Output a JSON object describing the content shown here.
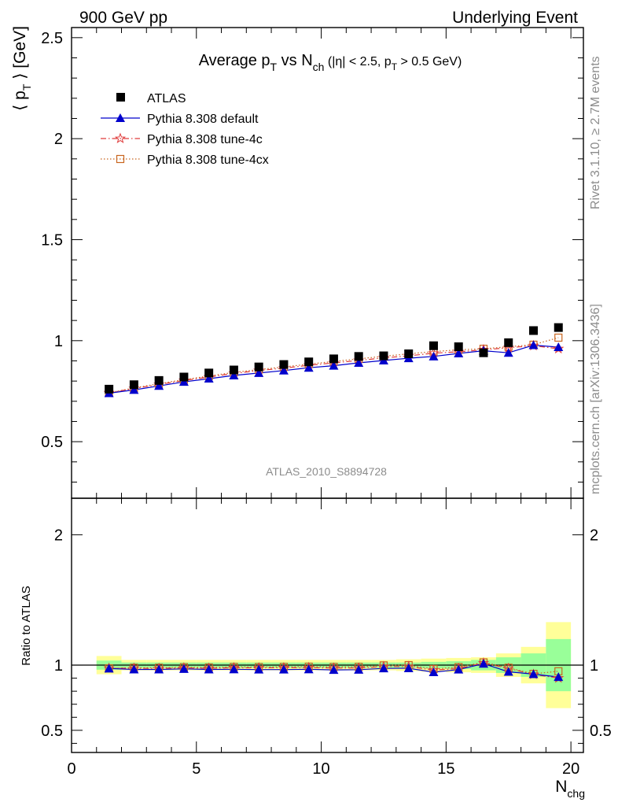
{
  "header": {
    "left": "900 GeV pp",
    "right": "Underlying Event"
  },
  "side": {
    "rivet": "Rivet 3.1.10, ≥ 2.7M events",
    "mcplots": "mcplots.cern.ch [arXiv:1306.3436]"
  },
  "colors": {
    "atlas": "#000000",
    "default": "#0000cc",
    "tune4c": "#e03c3c",
    "tune4cx": "#c8641e",
    "band_inner": "#99ff99",
    "band_outer": "#ffff99",
    "watermark": "#8c8c8c"
  },
  "chart_data": [
    {
      "type": "scatter",
      "title_parts": {
        "a": "Average p",
        "a_sub": "T",
        "b": " vs N",
        "b_sub": "ch",
        "c": " (|η| < 2.5, p",
        "c_sub": "T",
        "d": " > 0.5 GeV)"
      },
      "ylabel_parts": {
        "a": "⟨ p",
        "sub": "T",
        "b": " ⟩ [GeV]"
      },
      "watermark": "ATLAS_2010_S8894728",
      "xlim": [
        0,
        20.5
      ],
      "ylim": [
        0.22,
        2.55
      ],
      "yticks": [
        "0.5",
        "1",
        "1.5",
        "2",
        "2.5"
      ],
      "ytick_values": [
        0.5,
        1,
        1.5,
        2,
        2.5
      ],
      "x": [
        1.5,
        2.5,
        3.5,
        4.5,
        5.5,
        6.5,
        7.5,
        8.5,
        9.5,
        10.5,
        11.5,
        12.5,
        13.5,
        14.5,
        15.5,
        16.5,
        17.5,
        18.5,
        19.5
      ],
      "series": [
        {
          "name": "ATLAS",
          "style": "data",
          "values": [
            0.76,
            0.782,
            0.803,
            0.82,
            0.84,
            0.855,
            0.87,
            0.882,
            0.895,
            0.91,
            0.922,
            0.925,
            0.935,
            0.975,
            0.97,
            0.94,
            0.99,
            1.05,
            1.065
          ]
        },
        {
          "name": "Pythia 8.308 default",
          "style": "line-triangle",
          "values": [
            0.74,
            0.756,
            0.776,
            0.796,
            0.812,
            0.828,
            0.84,
            0.852,
            0.866,
            0.876,
            0.89,
            0.902,
            0.913,
            0.922,
            0.937,
            0.95,
            0.94,
            0.978,
            0.968
          ]
        },
        {
          "name": "Pythia 8.308 tune-4c",
          "style": "dashdot-star",
          "values": [
            0.742,
            0.763,
            0.783,
            0.803,
            0.82,
            0.838,
            0.852,
            0.864,
            0.878,
            0.89,
            0.902,
            0.915,
            0.925,
            0.938,
            0.945,
            0.955,
            0.965,
            0.975,
            0.96
          ]
        },
        {
          "name": "Pythia 8.308 tune-4cx",
          "style": "dotted-square",
          "values": [
            0.742,
            0.766,
            0.787,
            0.807,
            0.825,
            0.843,
            0.857,
            0.87,
            0.884,
            0.897,
            0.91,
            0.923,
            0.935,
            0.946,
            0.955,
            0.96,
            0.97,
            0.98,
            1.015
          ]
        }
      ]
    },
    {
      "type": "line",
      "ylabel": "Ratio to ATLAS",
      "xlabel_parts": {
        "a": "N",
        "sub": "chg"
      },
      "xlim": [
        0,
        20.5
      ],
      "ylim": [
        0.33,
        2.28
      ],
      "xticks": [
        "0",
        "5",
        "10",
        "15",
        "20"
      ],
      "xtick_values": [
        0,
        5,
        10,
        15,
        20
      ],
      "yticks": [
        "0.5",
        "1",
        "2"
      ],
      "ytick_values": [
        0.5,
        1,
        2
      ],
      "band_inner": [
        0.035,
        0.02,
        0.02,
        0.02,
        0.02,
        0.02,
        0.02,
        0.02,
        0.02,
        0.02,
        0.02,
        0.02,
        0.02,
        0.025,
        0.03,
        0.04,
        0.06,
        0.09,
        0.2
      ],
      "band_outer": [
        0.07,
        0.04,
        0.04,
        0.04,
        0.04,
        0.04,
        0.04,
        0.04,
        0.04,
        0.04,
        0.04,
        0.04,
        0.045,
        0.05,
        0.055,
        0.06,
        0.09,
        0.14,
        0.33
      ],
      "series": [
        {
          "name": "Pythia 8.308 default",
          "values": [
            0.974,
            0.967,
            0.967,
            0.971,
            0.967,
            0.968,
            0.966,
            0.966,
            0.968,
            0.963,
            0.965,
            0.975,
            0.976,
            0.946,
            0.966,
            1.011,
            0.949,
            0.931,
            0.909
          ]
        },
        {
          "name": "Pythia 8.308 tune-4c",
          "values": [
            0.976,
            0.976,
            0.975,
            0.979,
            0.976,
            0.98,
            0.979,
            0.98,
            0.981,
            0.978,
            0.978,
            0.989,
            0.989,
            0.962,
            0.974,
            1.016,
            0.975,
            0.929,
            0.901
          ]
        },
        {
          "name": "Pythia 8.308 tune-4cx",
          "values": [
            0.976,
            0.98,
            0.98,
            0.984,
            0.982,
            0.986,
            0.985,
            0.986,
            0.988,
            0.986,
            0.987,
            0.998,
            1.0,
            0.97,
            0.985,
            1.021,
            0.98,
            0.933,
            0.953
          ]
        }
      ]
    }
  ]
}
